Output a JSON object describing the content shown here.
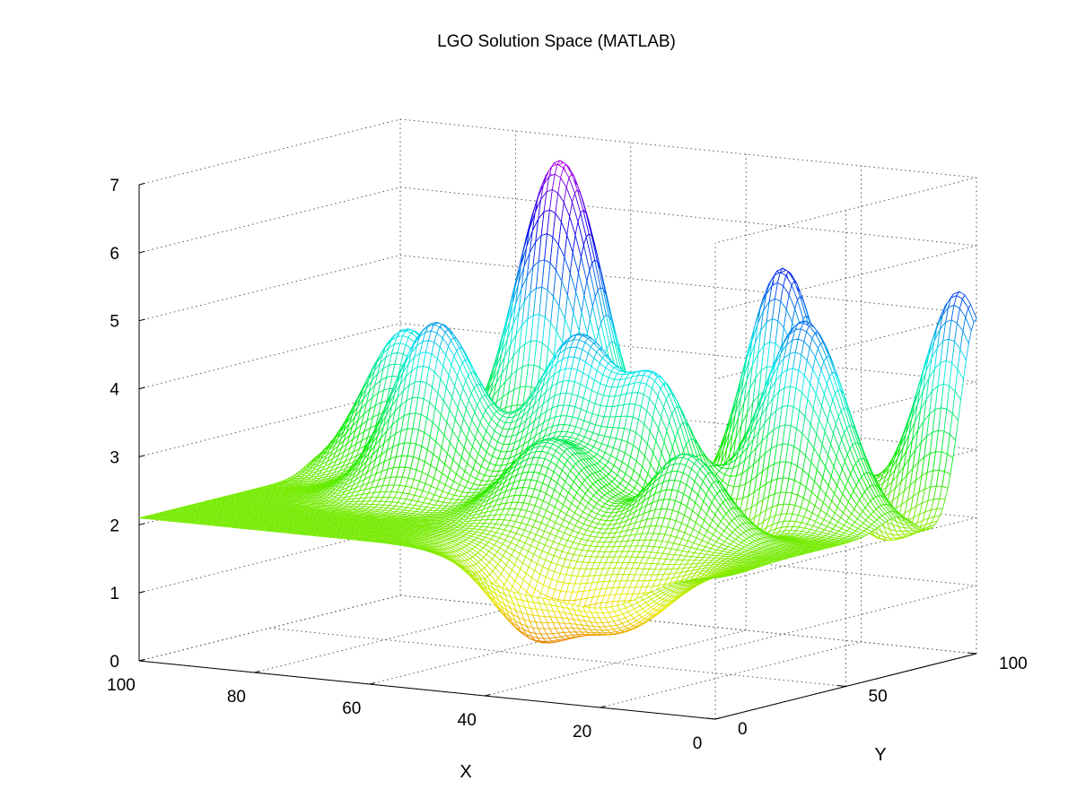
{
  "chart_data": {
    "type": "surface",
    "render": "mesh",
    "title": "LGO Solution Space (MATLAB)",
    "xlabel": "X",
    "ylabel": "Y",
    "zlabel": "",
    "xlim": [
      0,
      100
    ],
    "ylim": [
      0,
      100
    ],
    "zlim": [
      0,
      7
    ],
    "x_ticks": [
      0,
      20,
      40,
      60,
      80,
      100
    ],
    "x_tick_labels": [
      "0",
      "20",
      "40",
      "60",
      "80",
      "100"
    ],
    "y_ticks": [
      0,
      50,
      100
    ],
    "y_tick_labels": [
      "0",
      "50",
      "100"
    ],
    "z_ticks": [
      0,
      1,
      2,
      3,
      4,
      5,
      6,
      7
    ],
    "z_tick_labels": [
      "0",
      "1",
      "2",
      "3",
      "4",
      "5",
      "6",
      "7"
    ],
    "grid": true,
    "box": false,
    "colormap": "hsv",
    "color_range": [
      0,
      7
    ],
    "mesh_lines": 101,
    "function": {
      "form": "z = base + sum(a * exp(-((x - x0)^2 + (y - y0)^2) / (2 * s^2)))",
      "base": 2.1,
      "bumps": [
        {
          "x0": 70,
          "y0": 95,
          "a": 4.6,
          "s": 7
        },
        {
          "x0": 86,
          "y0": 72,
          "a": 2.2,
          "s": 7
        },
        {
          "x0": 72,
          "y0": 52,
          "a": 2.6,
          "s": 7
        },
        {
          "x0": 30,
          "y0": 92,
          "a": 3.4,
          "s": 6
        },
        {
          "x0": 3,
          "y0": 100,
          "a": 3.2,
          "s": 6
        },
        {
          "x0": 16,
          "y0": 70,
          "a": 3.0,
          "s": 7
        },
        {
          "x0": 50,
          "y0": 58,
          "a": 2.5,
          "s": 7
        },
        {
          "x0": 34,
          "y0": 55,
          "a": 2.1,
          "s": 6
        },
        {
          "x0": 46,
          "y0": 38,
          "a": 1.2,
          "s": 7
        },
        {
          "x0": 22,
          "y0": 38,
          "a": 1.3,
          "s": 6
        },
        {
          "x0": 20,
          "y0": 8,
          "a": -1.0,
          "s": 8
        },
        {
          "x0": 36,
          "y0": 10,
          "a": -1.2,
          "s": 7
        },
        {
          "x0": 25,
          "y0": 52,
          "a": -1.0,
          "s": 6
        },
        {
          "x0": 40,
          "y0": 78,
          "a": -0.9,
          "s": 6
        },
        {
          "x0": 10,
          "y0": 82,
          "a": -0.7,
          "s": 6
        }
      ]
    }
  }
}
